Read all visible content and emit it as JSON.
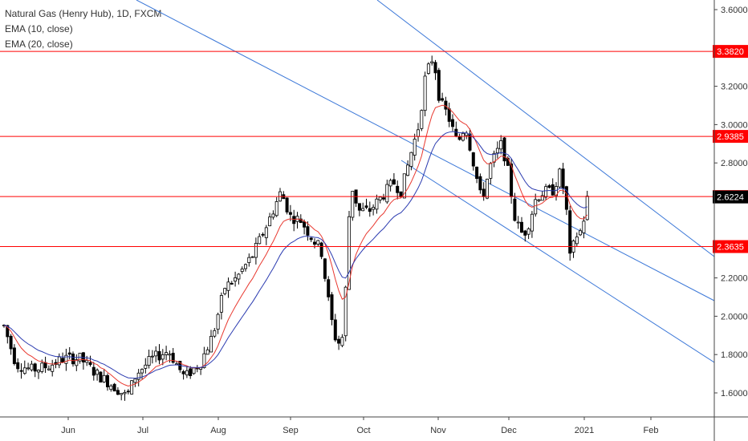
{
  "legend": {
    "title": "Natural Gas (Henry Hub), 1D, FXCM",
    "ema10": "EMA (10, close)",
    "ema20": "EMA (20, close)"
  },
  "colors": {
    "up_candle": "#ffffff",
    "down_candle": "#000000",
    "candle_border": "#000000",
    "ema10": "#e8382f",
    "ema20": "#2b3bb0",
    "hline": "#ff0000",
    "trendline": "#3c78d8",
    "current_price_badge": "#000000",
    "level_badge": "#ff0000"
  },
  "chart_data": {
    "type": "candlestick",
    "title": "Natural Gas (Henry Hub), 1D, FXCM",
    "x_axis_labels": [
      "Jun",
      "Jul",
      "Aug",
      "Sep",
      "Oct",
      "Nov",
      "Dec",
      "2021",
      "Feb"
    ],
    "y_ticks": [
      "3.6000",
      "3.2000",
      "3.0000",
      "2.8000",
      "2.2000",
      "2.0000",
      "1.8000",
      "1.6000"
    ],
    "ylim": [
      1.5,
      3.68
    ],
    "grid": false,
    "horizontal_levels": [
      "3.3820",
      "2.9385",
      "2.6245",
      "2.3635"
    ],
    "current_price": "2.6224",
    "series_names": [
      "EMA (10, close)",
      "EMA (20, close)"
    ]
  }
}
